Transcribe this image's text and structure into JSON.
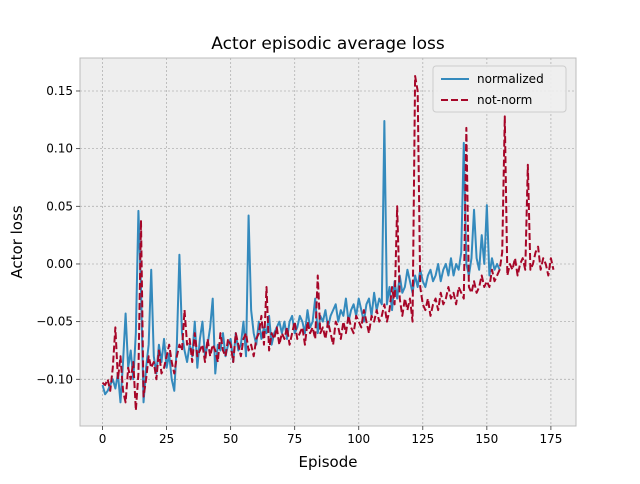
{
  "chart_data": {
    "type": "line",
    "title": "Actor episodic average loss",
    "xlabel": "Episode",
    "ylabel": "Actor loss",
    "xlim": [
      -8.8,
      184.8
    ],
    "ylim": [
      -0.1405,
      0.1786
    ],
    "xticks": [
      0,
      25,
      50,
      75,
      100,
      125,
      150,
      175
    ],
    "yticks": [
      {
        "value": -0.1,
        "label": "−0.10"
      },
      {
        "value": -0.05,
        "label": "−0.05"
      },
      {
        "value": 0,
        "label": "0.00"
      },
      {
        "value": 0.05,
        "label": "0.05"
      },
      {
        "value": 0.1,
        "label": "0.10"
      },
      {
        "value": 0.15,
        "label": "0.15"
      }
    ],
    "grid": true,
    "legend": "upper right",
    "series": [
      {
        "name": "normalized",
        "color": "#348ABD",
        "dash": false,
        "x": [
          0,
          1,
          2,
          3,
          4,
          5,
          6,
          7,
          8,
          9,
          10,
          11,
          12,
          13,
          14,
          15,
          16,
          17,
          18,
          19,
          20,
          21,
          22,
          23,
          24,
          25,
          26,
          27,
          28,
          29,
          30,
          31,
          32,
          33,
          34,
          35,
          36,
          37,
          38,
          39,
          40,
          41,
          42,
          43,
          44,
          45,
          46,
          47,
          48,
          49,
          50,
          51,
          52,
          53,
          54,
          55,
          56,
          57,
          58,
          59,
          60,
          61,
          62,
          63,
          64,
          65,
          66,
          67,
          68,
          69,
          70,
          71,
          72,
          73,
          74,
          75,
          76,
          77,
          78,
          79,
          80,
          81,
          82,
          83,
          84,
          85,
          86,
          87,
          88,
          89,
          90,
          91,
          92,
          93,
          94,
          95,
          96,
          97,
          98,
          99,
          100,
          101,
          102,
          103,
          104,
          105,
          106,
          107,
          108,
          109,
          110,
          111,
          112,
          113,
          114,
          115,
          116,
          117,
          118,
          119,
          120,
          121,
          122,
          123,
          124,
          125,
          126,
          127,
          128,
          129,
          130,
          131,
          132,
          133,
          134,
          135,
          136,
          137,
          138,
          139,
          140,
          141,
          142,
          143,
          144,
          145,
          146,
          147,
          148,
          149,
          150,
          151,
          152,
          153,
          154,
          155
        ],
        "values": [
          -0.105,
          -0.113,
          -0.11,
          -0.105,
          -0.1,
          -0.108,
          -0.095,
          -0.12,
          -0.085,
          -0.043,
          -0.09,
          -0.075,
          -0.1,
          -0.06,
          0.046,
          -0.02,
          -0.12,
          -0.09,
          -0.07,
          -0.005,
          -0.08,
          -0.095,
          -0.07,
          -0.085,
          -0.065,
          -0.09,
          -0.078,
          -0.1,
          -0.11,
          -0.07,
          0.008,
          -0.06,
          -0.075,
          -0.085,
          -0.07,
          -0.08,
          -0.05,
          -0.09,
          -0.065,
          -0.05,
          -0.08,
          -0.07,
          -0.055,
          -0.03,
          -0.095,
          -0.07,
          -0.075,
          -0.06,
          -0.08,
          -0.07,
          -0.065,
          -0.085,
          -0.06,
          -0.075,
          -0.07,
          -0.05,
          -0.08,
          0.042,
          -0.04,
          -0.06,
          -0.07,
          -0.05,
          -0.065,
          -0.055,
          -0.06,
          -0.045,
          -0.07,
          -0.06,
          -0.055,
          -0.05,
          -0.06,
          -0.05,
          -0.065,
          -0.05,
          -0.045,
          -0.06,
          -0.055,
          -0.045,
          -0.05,
          -0.06,
          -0.04,
          -0.055,
          -0.05,
          -0.03,
          -0.06,
          -0.045,
          -0.05,
          -0.04,
          -0.055,
          -0.045,
          -0.04,
          -0.035,
          -0.05,
          -0.04,
          -0.045,
          -0.03,
          -0.05,
          -0.04,
          -0.035,
          -0.045,
          -0.03,
          -0.04,
          -0.05,
          -0.035,
          -0.03,
          -0.045,
          -0.025,
          -0.04,
          -0.03,
          -0.035,
          0.124,
          -0.035,
          -0.02,
          -0.04,
          -0.015,
          -0.03,
          -0.01,
          -0.025,
          -0.02,
          -0.005,
          -0.015,
          -0.025,
          -0.01,
          -0.02,
          -0.005,
          -0.015,
          -0.02,
          -0.01,
          -0.005,
          -0.015,
          -0.01,
          0.0,
          -0.015,
          -0.005,
          0.0,
          -0.01,
          0.005,
          -0.01,
          0.0,
          -0.005,
          0.01,
          0.105,
          0.0,
          -0.01,
          0.005,
          0.047,
          0.005,
          -0.005,
          0.025,
          0.0,
          0.051,
          -0.01,
          0.005,
          -0.005,
          0.0,
          -0.005
        ]
      },
      {
        "name": "not-norm",
        "color": "#A60628",
        "dash": true,
        "x": [
          0,
          1,
          2,
          3,
          4,
          5,
          6,
          7,
          8,
          9,
          10,
          11,
          12,
          13,
          14,
          15,
          16,
          17,
          18,
          19,
          20,
          21,
          22,
          23,
          24,
          25,
          26,
          27,
          28,
          29,
          30,
          31,
          32,
          33,
          34,
          35,
          36,
          37,
          38,
          39,
          40,
          41,
          42,
          43,
          44,
          45,
          46,
          47,
          48,
          49,
          50,
          51,
          52,
          53,
          54,
          55,
          56,
          57,
          58,
          59,
          60,
          61,
          62,
          63,
          64,
          65,
          66,
          67,
          68,
          69,
          70,
          71,
          72,
          73,
          74,
          75,
          76,
          77,
          78,
          79,
          80,
          81,
          82,
          83,
          84,
          85,
          86,
          87,
          88,
          89,
          90,
          91,
          92,
          93,
          94,
          95,
          96,
          97,
          98,
          99,
          100,
          101,
          102,
          103,
          104,
          105,
          106,
          107,
          108,
          109,
          110,
          111,
          112,
          113,
          114,
          115,
          116,
          117,
          118,
          119,
          120,
          121,
          122,
          123,
          124,
          125,
          126,
          127,
          128,
          129,
          130,
          131,
          132,
          133,
          134,
          135,
          136,
          137,
          138,
          139,
          140,
          141,
          142,
          143,
          144,
          145,
          146,
          147,
          148,
          149,
          150,
          151,
          152,
          153,
          154,
          155,
          156,
          157,
          158,
          159,
          160,
          161,
          162,
          163,
          164,
          165,
          166,
          167,
          168,
          169,
          170,
          171,
          172,
          173,
          174,
          175,
          176
        ],
        "values": [
          -0.103,
          -0.105,
          -0.1,
          -0.11,
          -0.09,
          -0.055,
          -0.1,
          -0.08,
          -0.11,
          -0.12,
          -0.09,
          -0.1,
          -0.085,
          -0.127,
          -0.095,
          0.038,
          -0.115,
          -0.1,
          -0.08,
          -0.09,
          -0.085,
          -0.1,
          -0.075,
          -0.095,
          -0.09,
          -0.08,
          -0.07,
          -0.085,
          -0.095,
          -0.08,
          -0.07,
          -0.075,
          -0.04,
          -0.07,
          -0.065,
          -0.085,
          -0.06,
          -0.08,
          -0.075,
          -0.07,
          -0.085,
          -0.065,
          -0.08,
          -0.07,
          -0.075,
          -0.085,
          -0.06,
          -0.075,
          -0.08,
          -0.065,
          -0.07,
          -0.085,
          -0.06,
          -0.07,
          -0.08,
          -0.065,
          -0.06,
          -0.075,
          -0.07,
          -0.08,
          -0.065,
          -0.06,
          -0.045,
          -0.07,
          -0.02,
          -0.075,
          -0.06,
          -0.065,
          -0.055,
          -0.07,
          -0.06,
          -0.065,
          -0.055,
          -0.07,
          -0.06,
          -0.05,
          -0.065,
          -0.06,
          -0.055,
          -0.07,
          -0.05,
          -0.06,
          -0.055,
          -0.065,
          -0.01,
          -0.06,
          -0.055,
          -0.065,
          -0.05,
          -0.06,
          -0.07,
          -0.05,
          -0.055,
          -0.065,
          -0.05,
          -0.06,
          -0.045,
          -0.055,
          -0.06,
          -0.045,
          -0.05,
          -0.055,
          -0.04,
          -0.05,
          -0.06,
          -0.045,
          -0.05,
          -0.04,
          -0.05,
          -0.045,
          -0.035,
          -0.05,
          -0.04,
          -0.02,
          -0.035,
          0.05,
          -0.03,
          -0.045,
          -0.03,
          -0.04,
          -0.03,
          -0.05,
          0.163,
          0.15,
          -0.02,
          -0.035,
          -0.04,
          -0.03,
          -0.045,
          -0.035,
          -0.03,
          -0.04,
          -0.025,
          -0.035,
          -0.03,
          -0.02,
          -0.03,
          -0.025,
          -0.035,
          -0.02,
          -0.025,
          -0.03,
          0.118,
          -0.02,
          -0.025,
          -0.015,
          -0.025,
          -0.02,
          -0.01,
          -0.02,
          -0.015,
          -0.02,
          -0.005,
          -0.015,
          -0.01,
          -0.005,
          0.01,
          0.128,
          -0.01,
          0.0,
          -0.005,
          0.005,
          -0.01,
          0.0,
          0.005,
          -0.005,
          0.086,
          -0.005,
          0.0,
          0.01,
          0.015,
          -0.005,
          0.005,
          0.0,
          -0.01,
          0.005,
          -0.005
        ]
      }
    ]
  }
}
